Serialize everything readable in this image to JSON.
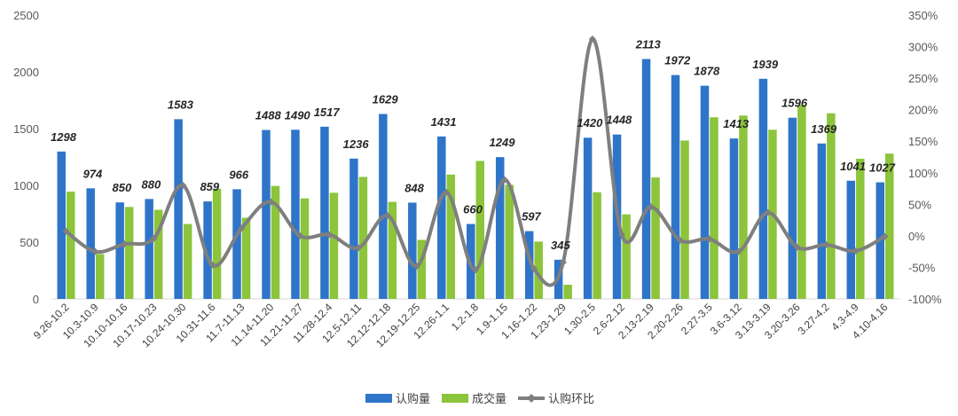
{
  "chart_data": {
    "type": "bar",
    "title": "",
    "xlabel": "",
    "ylabel": "",
    "categories": [
      "9.26-10.2",
      "10.3-10.9",
      "10.10-10.16",
      "10.17-10.23",
      "10.24-10.30",
      "10.31-11.6",
      "11.7-11.13",
      "11.14-11.20",
      "11.21-11.27",
      "11.28-12.4",
      "12.5-12.11",
      "12.12-12.18",
      "12.19-12.25",
      "12.26-1.1",
      "1.2-1.8",
      "1.9-1.15",
      "1.16-1.22",
      "1.23-1.29",
      "1.30-2.5",
      "2.6-2.12",
      "2.13-2.19",
      "2.20-2.26",
      "2.27-3.5",
      "3.6-3.12",
      "3.13-3.19",
      "3.20-3.26",
      "3.27-4.2",
      "4.3-4.9",
      "4.10-4.16"
    ],
    "series": [
      {
        "name": "认购量",
        "kind": "bar",
        "axis": "left",
        "color": "#2e75c9",
        "values": [
          1298,
          974,
          850,
          880,
          1583,
          859,
          966,
          1488,
          1490,
          1517,
          1236,
          1629,
          848,
          1431,
          660,
          1249,
          597,
          345,
          1420,
          1448,
          2113,
          1972,
          1878,
          1413,
          1939,
          1596,
          1369,
          1041,
          1027
        ]
      },
      {
        "name": "成交量",
        "kind": "bar",
        "axis": "left",
        "color": "#8cc43c",
        "values": [
          945,
          395,
          810,
          785,
          660,
          970,
          715,
          995,
          885,
          935,
          1075,
          855,
          520,
          1095,
          1215,
          1005,
          505,
          125,
          940,
          745,
          1070,
          1395,
          1600,
          1615,
          1490,
          1710,
          1635,
          1235,
          1280
        ]
      },
      {
        "name": "认购环比",
        "kind": "line",
        "axis": "right",
        "color": "#7f7f7f",
        "values": [
          0.07,
          -0.25,
          -0.13,
          -0.04,
          0.8,
          -0.46,
          0.12,
          0.54,
          0.0,
          0.02,
          -0.19,
          0.32,
          -0.48,
          0.69,
          -0.54,
          0.89,
          -0.52,
          -0.42,
          3.12,
          0.02,
          0.46,
          -0.07,
          -0.05,
          -0.25,
          0.37,
          -0.18,
          -0.14,
          -0.24,
          -0.01
        ]
      }
    ],
    "y_left": {
      "min": 0,
      "max": 2500,
      "ticks": [
        "0",
        "500",
        "1000",
        "1500",
        "2000",
        "2500"
      ]
    },
    "y_right": {
      "min": -1.0,
      "max": 3.5,
      "ticks": [
        "-100%",
        "-50%",
        "0%",
        "50%",
        "100%",
        "150%",
        "200%",
        "250%",
        "300%",
        "350%"
      ]
    },
    "data_labels": [
      "1298",
      "974",
      "850",
      "880",
      "1583",
      "859",
      "966",
      "1488",
      "1490",
      "1517",
      "1236",
      "1629",
      "848",
      "1431",
      "660",
      "1249",
      "597",
      "345",
      "1420",
      "1448",
      "2113",
      "1972",
      "1878",
      "1413",
      "1939",
      "1596",
      "1369",
      "1041",
      "1027"
    ],
    "legend": {
      "position": "bottom",
      "items": [
        "认购量",
        "成交量",
        "认购环比"
      ]
    },
    "grid": false
  }
}
